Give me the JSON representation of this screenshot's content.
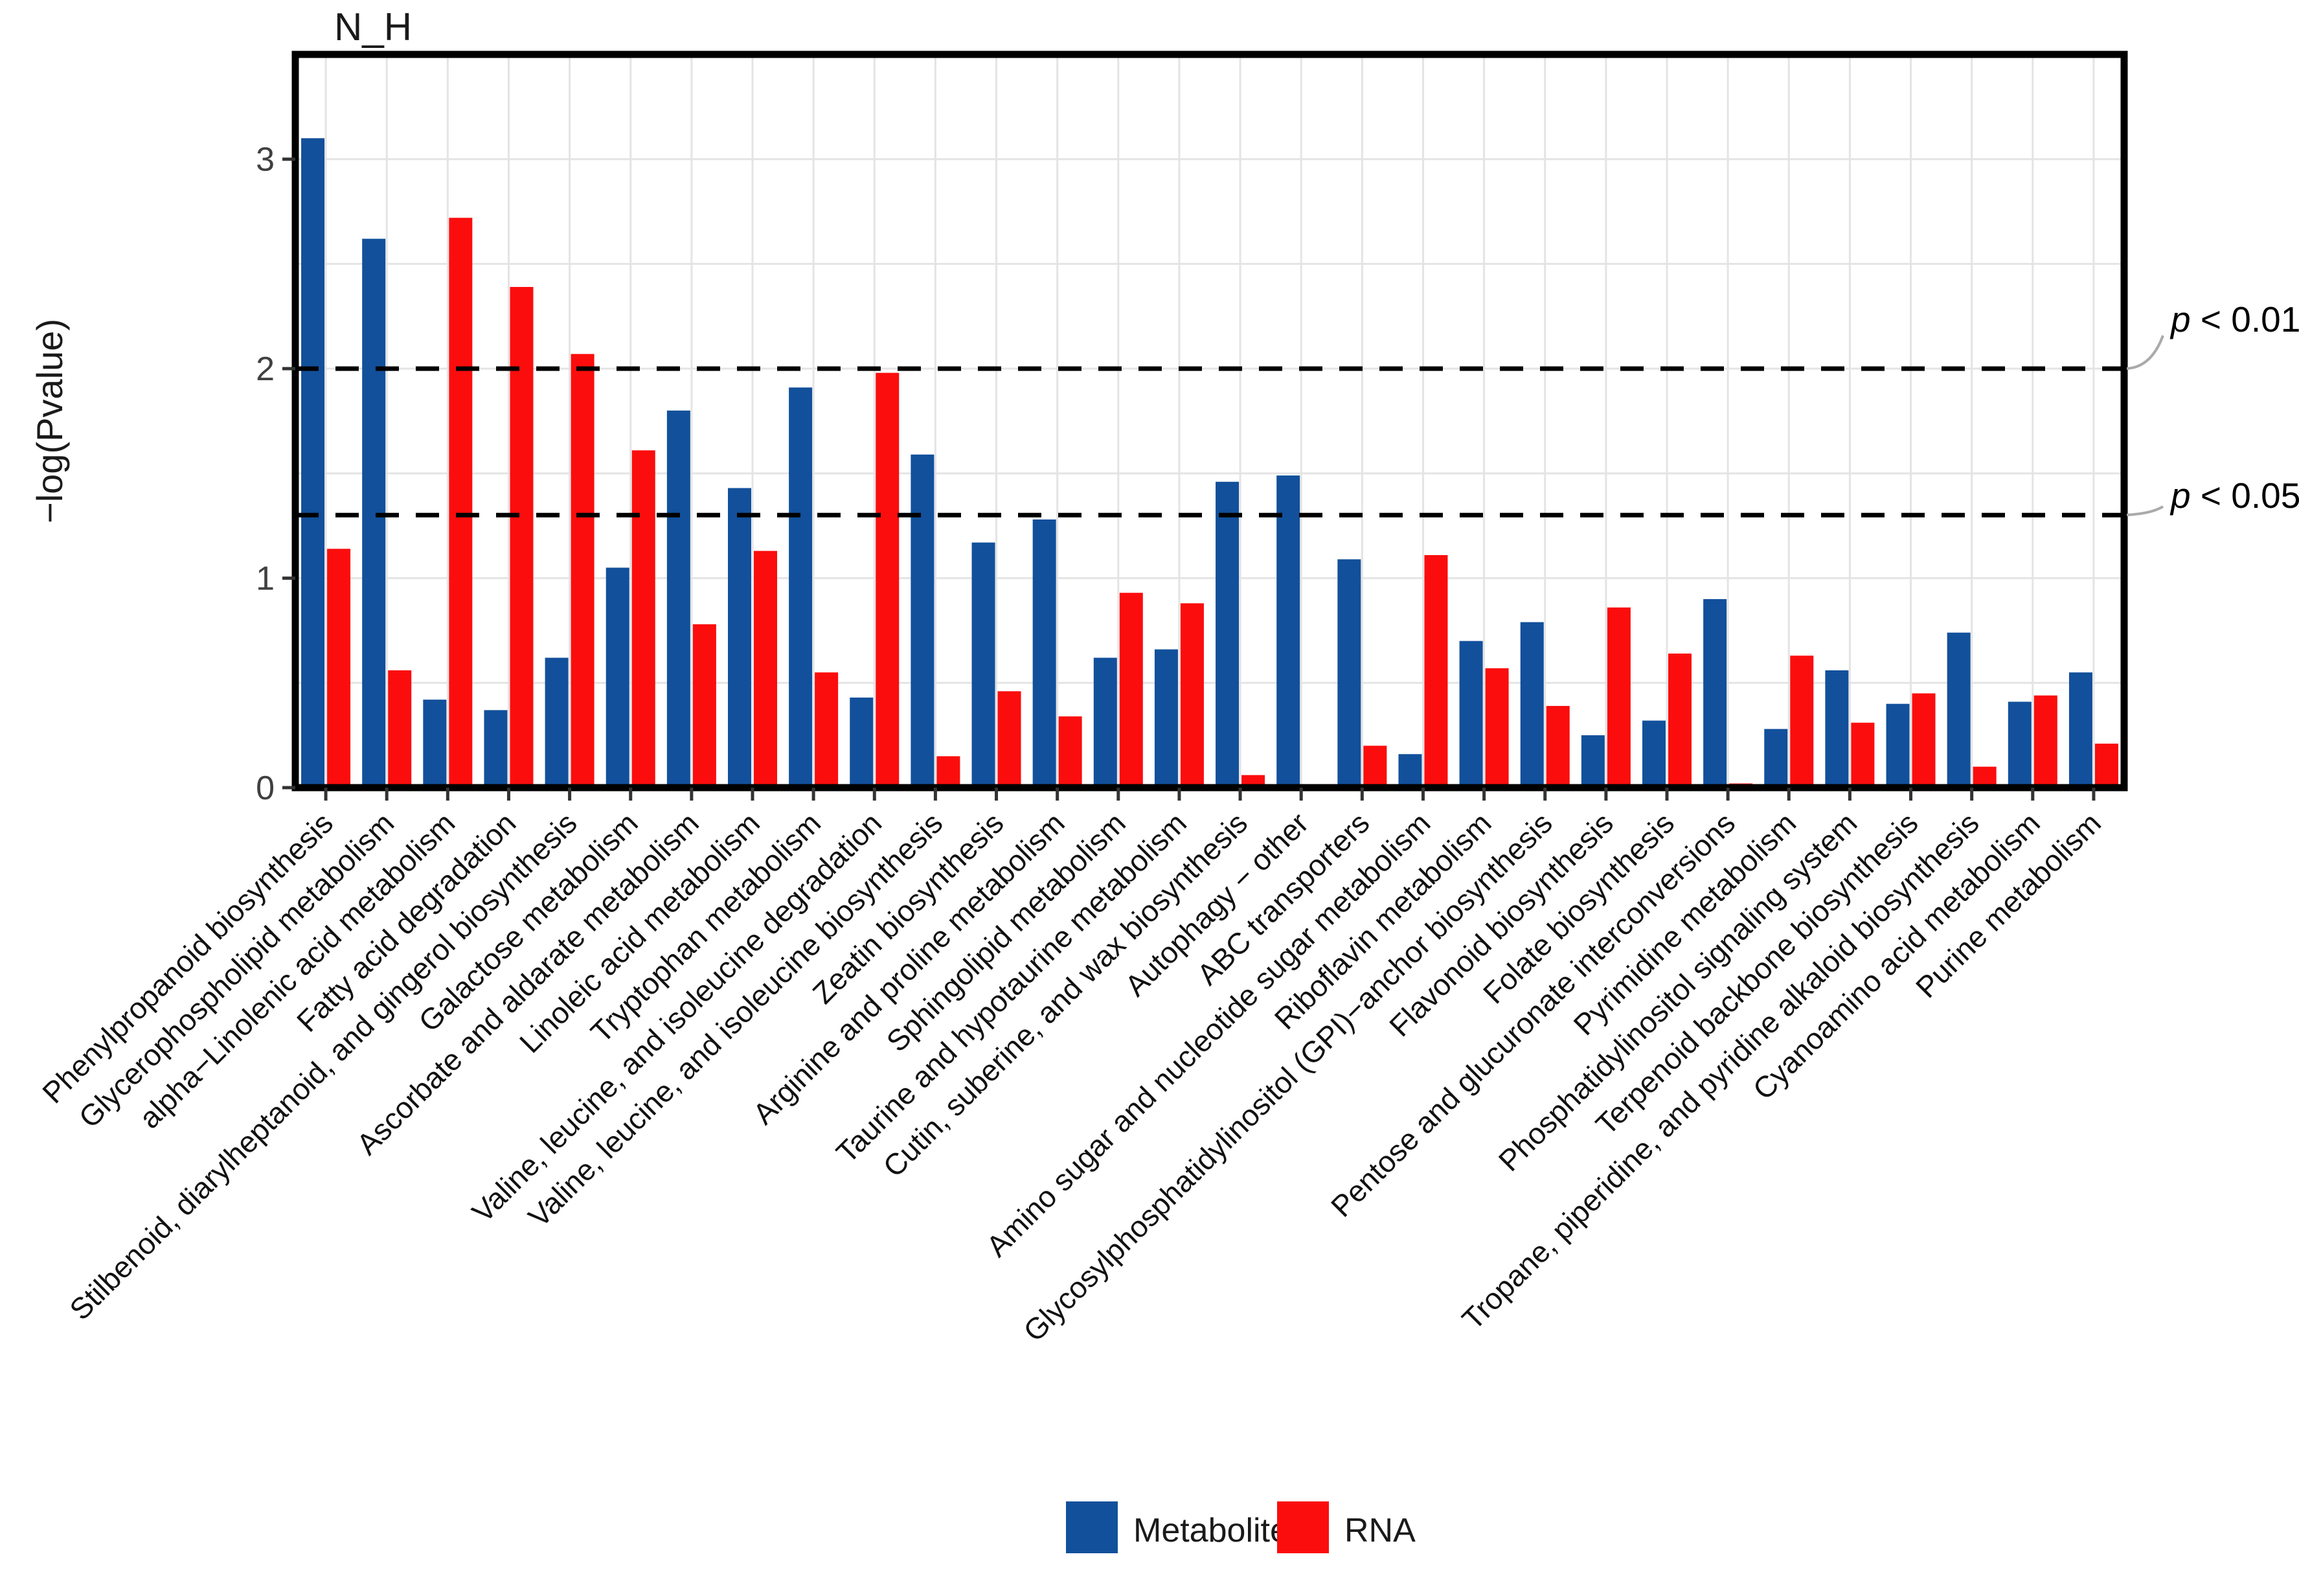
{
  "figure": {
    "title": "N_H",
    "y_axis": {
      "label": "−log(Pvalue)",
      "tick_labels": [
        "0",
        "1",
        "2",
        "3"
      ]
    },
    "threshold_labels": [
      {
        "p": "p",
        "rest": " < 0.01"
      },
      {
        "p": "p",
        "rest": " < 0.05"
      }
    ],
    "legend": {
      "items": [
        {
          "label": "Metabolite",
          "color": "#12509B"
        },
        {
          "label": "RNA",
          "color": "#FB0D0D"
        }
      ]
    }
  },
  "chart_data": {
    "type": "bar",
    "title": "N_H",
    "xlabel": "",
    "ylabel": "−log(Pvalue)",
    "ylim": [
      0,
      3.5
    ],
    "grid": true,
    "gridline_step": 0.5,
    "legend_position": "bottom",
    "bar_colors": {
      "Metabolite": "#12509B",
      "RNA": "#FB0D0D"
    },
    "reference_lines": [
      {
        "y": 2.0,
        "style": "dashed",
        "label": "p < 0.01"
      },
      {
        "y": 1.301,
        "style": "dashed",
        "label": "p < 0.05"
      }
    ],
    "categories": [
      "Phenylpropanoid biosynthesis",
      "Glycerophospholipid metabolism",
      "alpha−Linolenic acid metabolism",
      "Fatty acid degradation",
      "Stilbenoid, diarylheptanoid, and gingerol biosynthesis",
      "Galactose metabolism",
      "Ascorbate and aldarate metabolism",
      "Linoleic acid metabolism",
      "Tryptophan metabolism",
      "Valine, leucine, and isoleucine degradation",
      "Valine, leucine, and isoleucine biosynthesis",
      "Zeatin biosynthesis",
      "Arginine and proline metabolism",
      "Sphingolipid metabolism",
      "Taurine and hypotaurine metabolism",
      "Cutin, suberine, and wax biosynthesis",
      "Autophagy − other",
      "ABC transporters",
      "Amino sugar and nucleotide sugar metabolism",
      "Riboflavin metabolism",
      "Glycosylphosphatidylinositol (GPI)−anchor biosynthesis",
      "Flavonoid biosynthesis",
      "Folate biosynthesis",
      "Pentose and glucuronate interconversions",
      "Pyrimidine metabolism",
      "Phosphatidylinositol signaling system",
      "Terpenoid backbone biosynthesis",
      "Tropane, piperidine, and pyridine alkaloid biosynthesis",
      "Cyanoamino acid metabolism",
      "Purine metabolism"
    ],
    "series": [
      {
        "name": "Metabolite",
        "color": "#12509B",
        "values": [
          3.1,
          2.62,
          0.42,
          0.37,
          0.62,
          1.05,
          1.8,
          1.43,
          1.91,
          0.43,
          1.59,
          1.17,
          1.28,
          0.62,
          0.66,
          1.46,
          1.49,
          1.09,
          0.16,
          0.7,
          0.79,
          0.25,
          0.32,
          0.9,
          0.28,
          0.56,
          0.4,
          0.74,
          0.41,
          0.55
        ]
      },
      {
        "name": "RNA",
        "color": "#FB0D0D",
        "values": [
          1.14,
          0.56,
          2.72,
          2.39,
          2.07,
          1.61,
          0.78,
          1.13,
          0.55,
          1.98,
          0.15,
          0.46,
          0.34,
          0.93,
          0.88,
          0.06,
          null,
          0.2,
          1.11,
          0.57,
          0.39,
          0.86,
          0.64,
          0.02,
          0.63,
          0.31,
          0.45,
          0.1,
          0.44,
          0.21
        ]
      }
    ]
  }
}
